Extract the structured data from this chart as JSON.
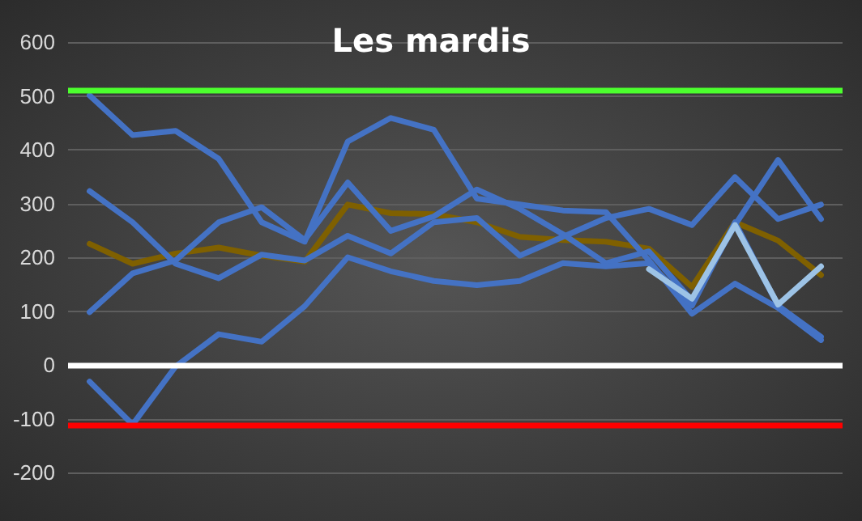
{
  "chart_data": {
    "type": "line",
    "title": "Les mardis",
    "categories": [
      null,
      null,
      null,
      null,
      null,
      null,
      null,
      null,
      null,
      null,
      null,
      null,
      null,
      null,
      null,
      null,
      null,
      null
    ],
    "series": [
      {
        "color": "#7f6000",
        "values": [
          225,
          188,
          207,
          218,
          203,
          192,
          298,
          282,
          280,
          265,
          238,
          232,
          229,
          216,
          145,
          265,
          231,
          167
        ]
      },
      {
        "color": "#4472c4",
        "values": [
          501,
          427,
          435,
          383,
          265,
          229,
          415,
          459,
          437,
          309,
          298,
          287,
          284,
          194,
          95,
          151,
          106,
          46
        ]
      },
      {
        "color": "#4472c4",
        "values": [
          323,
          265,
          188,
          161,
          205,
          194,
          240,
          207,
          265,
          273,
          203,
          238,
          273,
          290,
          260,
          349,
          271,
          298
        ]
      },
      {
        "color": "#4472c4",
        "values": [
          98,
          170,
          194,
          265,
          293,
          232,
          339,
          249,
          276,
          326,
          290,
          243,
          189,
          211,
          120,
          260,
          381,
          271
        ]
      },
      {
        "color": "#4472c4",
        "values": [
          -31,
          -111,
          -3,
          57,
          43,
          109,
          200,
          174,
          156,
          148,
          156,
          189,
          183,
          189,
          110,
          265,
          110,
          52
        ]
      },
      {
        "color": "#9dc3e6",
        "values": [
          null,
          null,
          null,
          null,
          null,
          null,
          null,
          null,
          null,
          null,
          null,
          null,
          null,
          178,
          123,
          260,
          112,
          183
        ]
      }
    ],
    "ref_lines": [
      {
        "axis": "y",
        "value": 512,
        "color": "#4cff2e"
      },
      {
        "axis": "y",
        "value": 0,
        "color": "#ffffff"
      },
      {
        "axis": "y",
        "value": -113,
        "color": "#ff0000"
      }
    ],
    "ylim": [
      -200,
      600
    ],
    "yticks": [
      -200,
      -100,
      0,
      100,
      200,
      300,
      400,
      500,
      600
    ],
    "grid": "y",
    "marker": "none",
    "line_style": "solid"
  }
}
